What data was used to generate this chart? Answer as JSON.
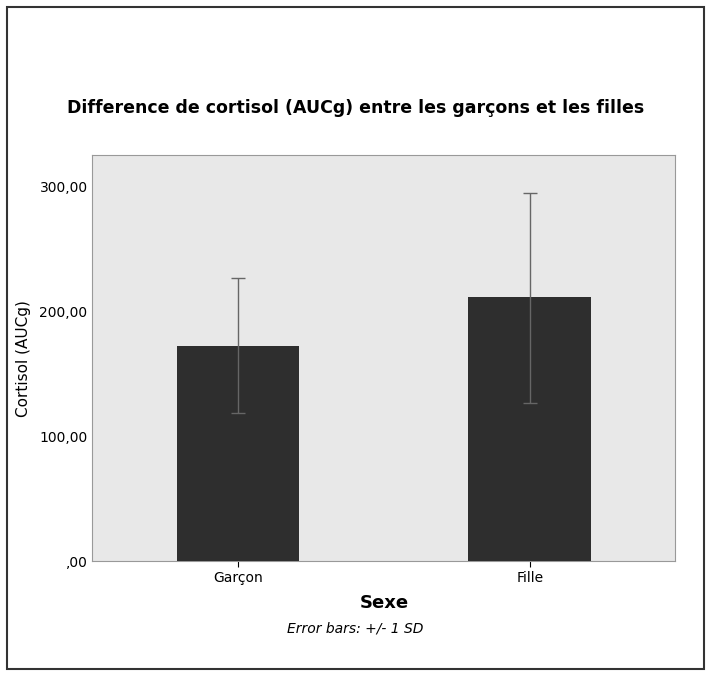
{
  "title": "Difference de cortisol (AUCg) entre les garçons et les filles",
  "categories": [
    "Garçon",
    "Fille"
  ],
  "values": [
    172.0,
    212.0
  ],
  "errors_upper": [
    55.0,
    83.0
  ],
  "errors_lower": [
    53.0,
    85.0
  ],
  "bar_color": "#2e2e2e",
  "bar_width": 0.42,
  "xlabel": "Sexe",
  "ylabel": "Cortisol (AUCg)",
  "footer": "Error bars: +/- 1 SD",
  "ylim": [
    0,
    325
  ],
  "yticks": [
    0,
    100,
    200,
    300
  ],
  "ytick_labels": [
    ",00",
    "100,00",
    "200,00",
    "300,00"
  ],
  "plot_bg_color": "#e8e8e8",
  "fig_bg_color": "#ffffff",
  "title_fontsize": 12.5,
  "title_fontweight": "bold",
  "axis_label_fontsize": 11,
  "tick_fontsize": 10,
  "footer_fontsize": 10,
  "xlabel_fontsize": 13,
  "xlabel_fontweight": "bold"
}
